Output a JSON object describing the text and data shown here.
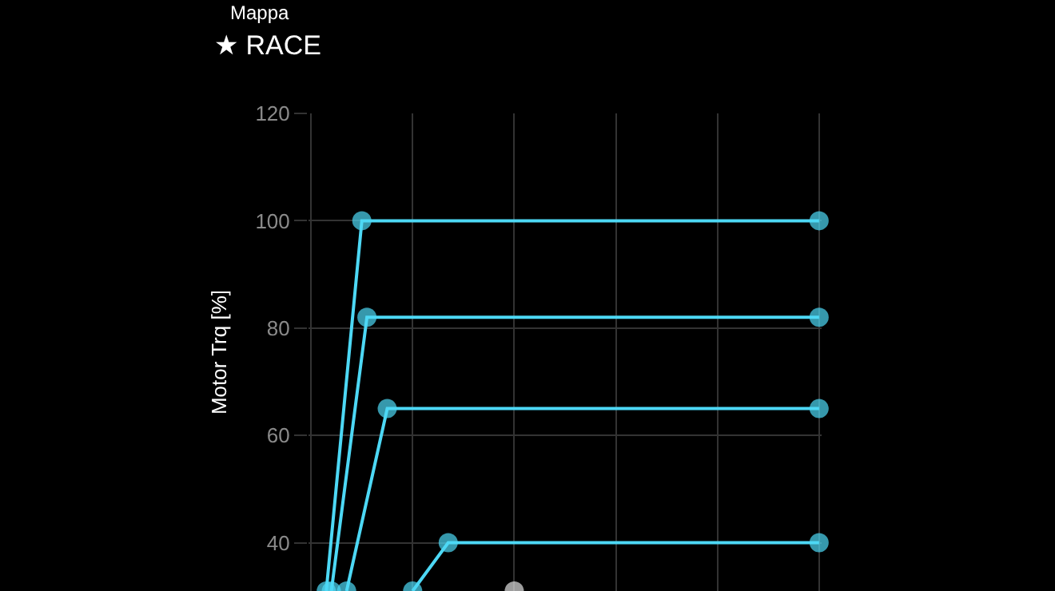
{
  "chart_data": {
    "type": "line",
    "title": "Mappa",
    "subtitle": "★ RACE",
    "ylabel": "Motor Trq [%]",
    "categories": [
      null,
      null,
      null,
      null,
      null,
      null,
      null,
      null,
      null,
      null,
      null,
      null,
      null,
      null,
      null,
      null,
      null,
      null,
      null,
      null,
      null,
      null,
      null,
      null,
      null,
      null,
      null,
      null,
      null,
      null,
      null,
      null,
      null,
      null,
      null,
      null,
      null,
      null,
      null,
      null,
      null,
      null,
      null,
      null,
      null,
      null,
      null,
      null,
      null,
      null,
      null,
      null,
      null,
      null,
      null,
      null,
      null,
      null,
      null,
      null,
      null,
      null,
      null,
      null,
      null,
      null,
      null,
      null,
      null,
      null,
      null,
      null,
      null,
      null,
      null,
      null,
      null,
      null,
      null,
      null,
      null,
      null,
      null,
      null,
      null,
      null,
      null,
      null,
      null,
      null,
      null,
      null,
      null,
      null,
      null,
      null,
      null,
      null,
      null,
      null,
      null
    ],
    "ylim": [
      31,
      120
    ],
    "yticks": [
      40,
      60,
      80,
      100,
      120
    ],
    "tick_labels": "y",
    "grid": true,
    "marker": "circle",
    "line_style": "solid",
    "series": [
      {
        "color": "#4dd8f5",
        "values": [
          null,
          null,
          null,
          31,
          null,
          null,
          null,
          null,
          null,
          null,
          100,
          null,
          null,
          null,
          null,
          null,
          null,
          null,
          null,
          null,
          null,
          null,
          null,
          null,
          null,
          null,
          null,
          null,
          null,
          null,
          null,
          null,
          null,
          null,
          null,
          null,
          null,
          null,
          null,
          null,
          null,
          null,
          null,
          null,
          null,
          null,
          null,
          null,
          null,
          null,
          null,
          null,
          null,
          null,
          null,
          null,
          null,
          null,
          null,
          null,
          null,
          null,
          null,
          null,
          null,
          null,
          null,
          null,
          null,
          null,
          null,
          null,
          null,
          null,
          null,
          null,
          null,
          null,
          null,
          null,
          null,
          null,
          null,
          null,
          null,
          null,
          null,
          null,
          null,
          null,
          null,
          null,
          null,
          null,
          null,
          null,
          null,
          null,
          null,
          null,
          100
        ]
      },
      {
        "color": "#4dd8f5",
        "values": [
          null,
          null,
          null,
          null,
          31,
          null,
          null,
          null,
          null,
          null,
          null,
          82,
          null,
          null,
          null,
          null,
          null,
          null,
          null,
          null,
          null,
          null,
          null,
          null,
          null,
          null,
          null,
          null,
          null,
          null,
          null,
          null,
          null,
          null,
          null,
          null,
          null,
          null,
          null,
          null,
          null,
          null,
          null,
          null,
          null,
          null,
          null,
          null,
          null,
          null,
          null,
          null,
          null,
          null,
          null,
          null,
          null,
          null,
          null,
          null,
          null,
          null,
          null,
          null,
          null,
          null,
          null,
          null,
          null,
          null,
          null,
          null,
          null,
          null,
          null,
          null,
          null,
          null,
          null,
          null,
          null,
          null,
          null,
          null,
          null,
          null,
          null,
          null,
          null,
          null,
          null,
          null,
          null,
          null,
          null,
          null,
          null,
          null,
          null,
          null,
          82
        ]
      },
      {
        "color": "#4dd8f5",
        "values": [
          null,
          null,
          null,
          null,
          null,
          null,
          null,
          31,
          null,
          null,
          null,
          null,
          null,
          null,
          null,
          65,
          null,
          null,
          null,
          null,
          null,
          null,
          null,
          null,
          null,
          null,
          null,
          null,
          null,
          null,
          null,
          null,
          null,
          null,
          null,
          null,
          null,
          null,
          null,
          null,
          null,
          null,
          null,
          null,
          null,
          null,
          null,
          null,
          null,
          null,
          null,
          null,
          null,
          null,
          null,
          null,
          null,
          null,
          null,
          null,
          null,
          null,
          null,
          null,
          null,
          null,
          null,
          null,
          null,
          null,
          null,
          null,
          null,
          null,
          null,
          null,
          null,
          null,
          null,
          null,
          null,
          null,
          null,
          null,
          null,
          null,
          null,
          null,
          null,
          null,
          null,
          null,
          null,
          null,
          null,
          null,
          null,
          null,
          null,
          null,
          65
        ]
      },
      {
        "color": "#4dd8f5",
        "values": [
          null,
          null,
          null,
          null,
          null,
          null,
          null,
          null,
          null,
          null,
          null,
          null,
          null,
          null,
          null,
          null,
          null,
          null,
          null,
          null,
          31,
          null,
          null,
          null,
          null,
          null,
          null,
          40,
          null,
          null,
          null,
          null,
          null,
          null,
          null,
          null,
          null,
          null,
          null,
          null,
          null,
          null,
          null,
          null,
          null,
          null,
          null,
          null,
          null,
          null,
          null,
          null,
          null,
          null,
          null,
          null,
          null,
          null,
          null,
          null,
          null,
          null,
          null,
          null,
          null,
          null,
          null,
          null,
          null,
          null,
          null,
          null,
          null,
          null,
          null,
          null,
          null,
          null,
          null,
          null,
          null,
          null,
          null,
          null,
          null,
          null,
          null,
          null,
          null,
          null,
          null,
          null,
          null,
          null,
          null,
          null,
          null,
          null,
          null,
          null,
          40
        ]
      },
      {
        "color": "#e0e0e0",
        "values": [
          null,
          null,
          null,
          null,
          null,
          null,
          null,
          null,
          null,
          null,
          null,
          null,
          null,
          null,
          null,
          null,
          null,
          null,
          null,
          null,
          null,
          null,
          null,
          null,
          null,
          null,
          null,
          null,
          null,
          null,
          null,
          null,
          null,
          null,
          null,
          null,
          null,
          null,
          null,
          null,
          31,
          null,
          null,
          null,
          null,
          null,
          null,
          null,
          null,
          null,
          null,
          null,
          null,
          null,
          null,
          null,
          null,
          null,
          null,
          null,
          null,
          null,
          null,
          null,
          null,
          null,
          null,
          null,
          null,
          null,
          null,
          null,
          null,
          null,
          null,
          null,
          null,
          null,
          null,
          null,
          null,
          null,
          null,
          null,
          null,
          null,
          null,
          null,
          null,
          null,
          null,
          null,
          null,
          null,
          null,
          null,
          null,
          null,
          null,
          null,
          null
        ]
      }
    ]
  }
}
